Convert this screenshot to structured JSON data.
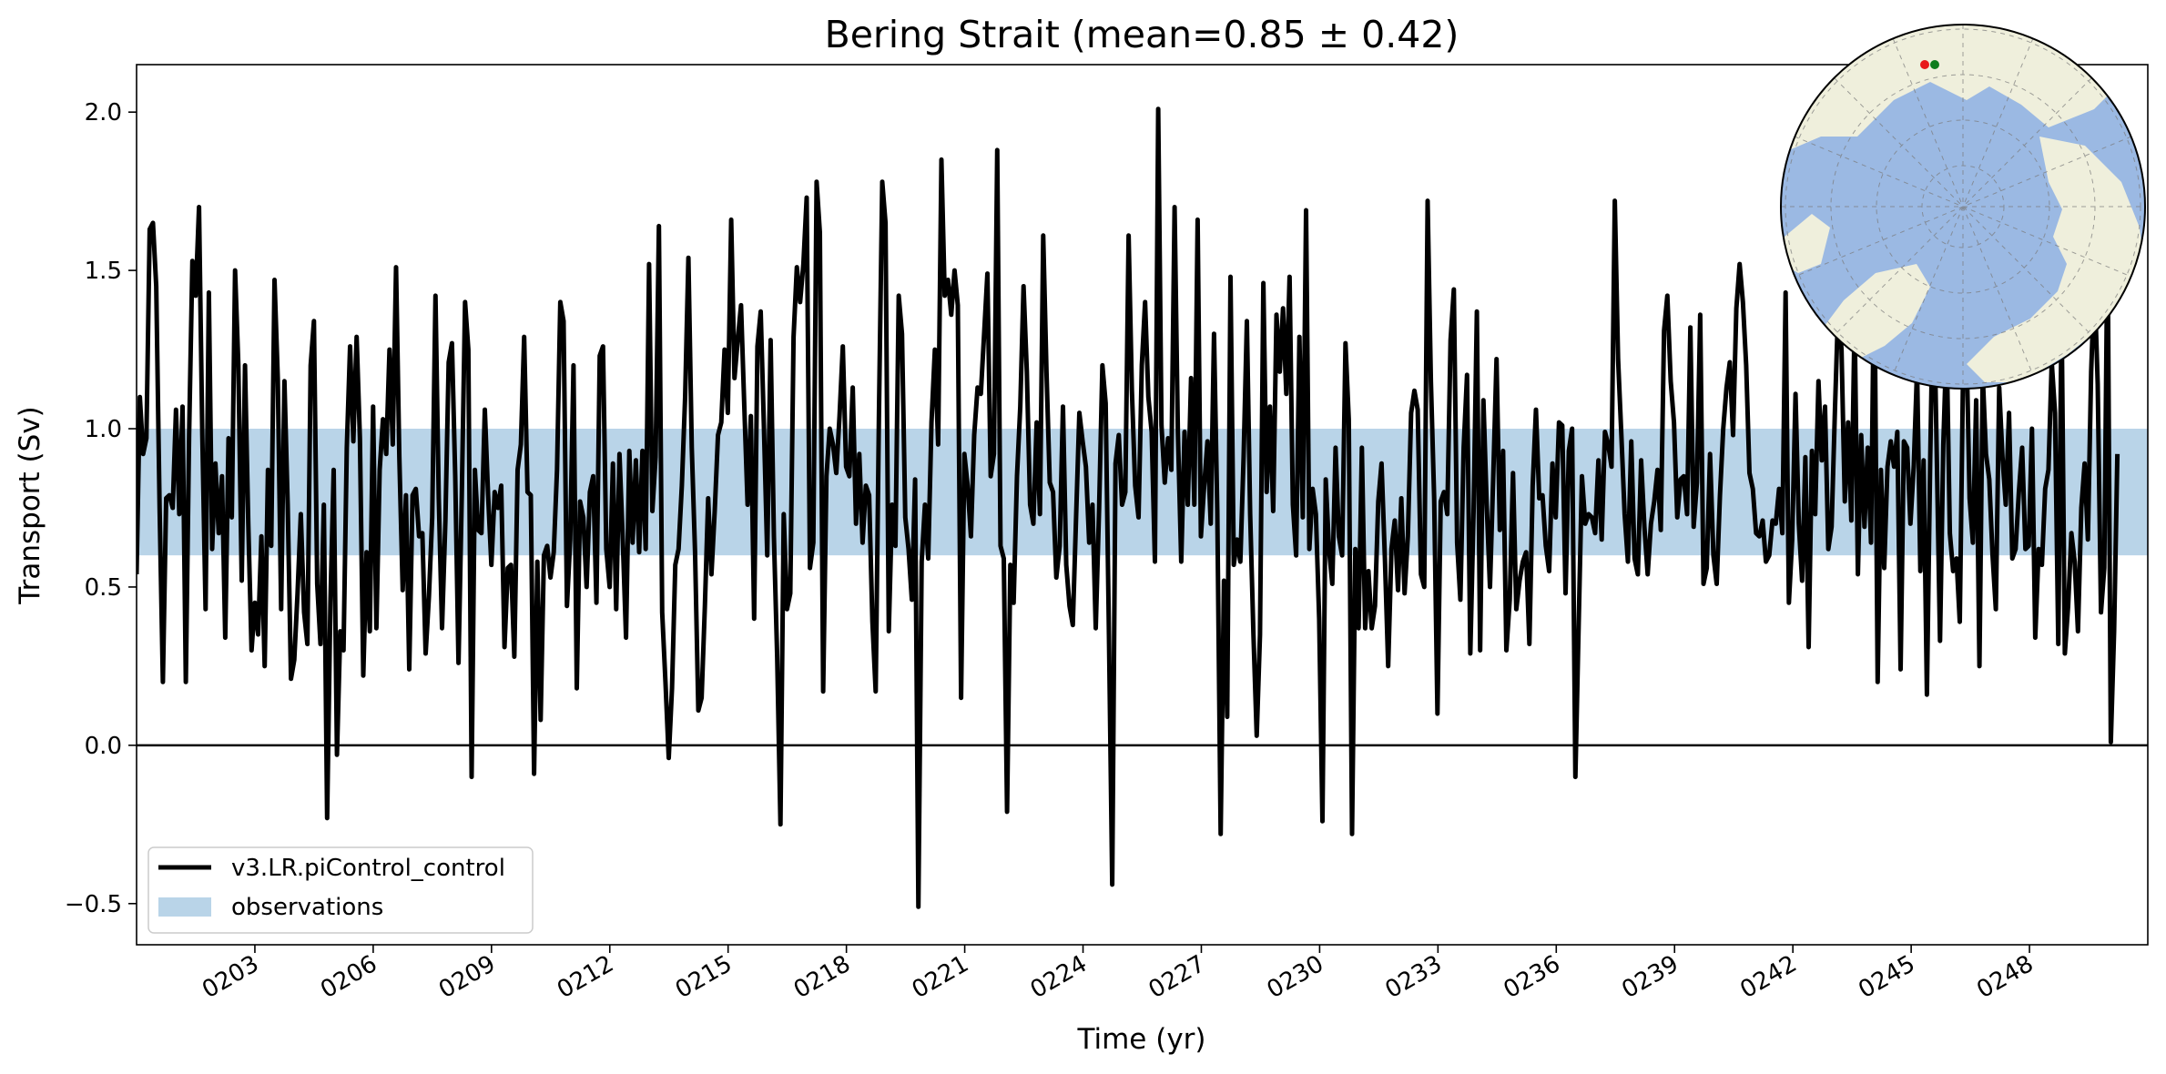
{
  "chart_data": {
    "type": "line",
    "title": "Bering Strait (mean=0.85 ± 0.42)",
    "xlabel": "Time (yr)",
    "ylabel": "Transport (Sv)",
    "xlim": [
      200,
      251
    ],
    "ylim": [
      -0.63,
      2.15
    ],
    "y_ticks": [
      -0.5,
      0.0,
      0.5,
      1.0,
      1.5,
      2.0
    ],
    "y_tick_labels": [
      "−0.5",
      "0.0",
      "0.5",
      "1.0",
      "1.5",
      "2.0"
    ],
    "x_ticks": [
      203,
      206,
      209,
      212,
      215,
      218,
      221,
      224,
      227,
      230,
      233,
      236,
      239,
      242,
      245,
      248
    ],
    "x_tick_labels": [
      "0203",
      "0206",
      "0209",
      "0212",
      "0215",
      "0218",
      "0221",
      "0224",
      "0227",
      "0230",
      "0233",
      "0236",
      "0239",
      "0242",
      "0245",
      "0248"
    ],
    "zero_line": 0.0,
    "observations_band": [
      0.6,
      1.0
    ],
    "legend_position": "lower-left",
    "series": [
      {
        "name": "v3.LR.piControl_control",
        "color": "#000000",
        "x_start": 200.0,
        "x_step": 0.0833,
        "values": [
          0.54,
          1.1,
          0.92,
          0.97,
          1.63,
          1.65,
          1.45,
          0.75,
          0.2,
          0.78,
          0.79,
          0.75,
          1.06,
          0.73,
          1.07,
          0.2,
          0.98,
          1.53,
          1.42,
          1.7,
          0.98,
          0.43,
          1.43,
          0.62,
          0.89,
          0.67,
          0.85,
          0.34,
          0.97,
          0.72,
          1.5,
          1.2,
          0.52,
          1.2,
          0.7,
          0.3,
          0.45,
          0.35,
          0.66,
          0.25,
          0.87,
          0.63,
          1.47,
          1.16,
          0.43,
          1.15,
          0.76,
          0.21,
          0.27,
          0.48,
          0.73,
          0.42,
          0.32,
          1.2,
          1.34,
          0.51,
          0.32,
          0.76,
          -0.23,
          0.45,
          0.87,
          -0.03,
          0.36,
          0.3,
          0.94,
          1.26,
          0.96,
          1.29,
          0.97,
          0.22,
          0.61,
          0.36,
          1.07,
          0.37,
          0.87,
          1.03,
          0.92,
          1.25,
          0.95,
          1.51,
          0.91,
          0.49,
          0.79,
          0.24,
          0.79,
          0.81,
          0.66,
          0.67,
          0.29,
          0.47,
          0.72,
          1.42,
          0.78,
          0.37,
          0.71,
          1.21,
          1.27,
          0.85,
          0.26,
          0.79,
          1.4,
          1.25,
          -0.1,
          0.87,
          0.68,
          0.67,
          1.06,
          0.79,
          0.57,
          0.8,
          0.75,
          0.82,
          0.31,
          0.56,
          0.57,
          0.28,
          0.87,
          0.95,
          1.29,
          0.8,
          0.79,
          -0.09,
          0.58,
          0.08,
          0.6,
          0.63,
          0.53,
          0.61,
          0.87,
          1.4,
          1.34,
          0.44,
          0.65,
          1.2,
          0.18,
          0.77,
          0.72,
          0.5,
          0.8,
          0.85,
          0.45,
          1.23,
          1.26,
          0.62,
          0.5,
          0.89,
          0.43,
          0.92,
          0.65,
          0.34,
          0.93,
          0.64,
          0.9,
          0.61,
          0.93,
          0.62,
          1.52,
          0.74,
          0.91,
          1.64,
          0.42,
          0.2,
          -0.04,
          0.18,
          0.57,
          0.62,
          0.82,
          1.1,
          1.54,
          0.94,
          0.61,
          0.11,
          0.15,
          0.44,
          0.78,
          0.54,
          0.74,
          0.98,
          1.02,
          1.25,
          1.05,
          1.66,
          1.16,
          1.28,
          1.39,
          1.07,
          0.76,
          1.04,
          0.4,
          1.26,
          1.37,
          1.0,
          0.6,
          1.28,
          0.66,
          0.28,
          -0.25,
          0.73,
          0.43,
          0.48,
          1.29,
          1.51,
          1.4,
          1.52,
          1.73,
          0.56,
          0.64,
          1.78,
          1.62,
          0.17,
          0.85,
          1.0,
          0.95,
          0.86,
          1.04,
          1.26,
          0.88,
          0.85,
          1.13,
          0.7,
          0.92,
          0.64,
          0.82,
          0.79,
          0.39,
          0.17,
          1.05,
          1.78,
          1.65,
          0.36,
          0.76,
          0.63,
          1.42,
          1.3,
          0.72,
          0.62,
          0.46,
          0.84,
          -0.51,
          0.58,
          0.76,
          0.59,
          1.02,
          1.25,
          0.95,
          1.85,
          1.42,
          1.47,
          1.36,
          1.5,
          1.39,
          0.15,
          0.92,
          0.82,
          0.66,
          0.98,
          1.13,
          1.11,
          1.3,
          1.49,
          0.85,
          0.92,
          1.88,
          0.63,
          0.59,
          -0.21,
          0.57,
          0.45,
          0.85,
          1.07,
          1.45,
          1.18,
          0.76,
          0.7,
          1.02,
          0.73,
          1.61,
          1.18,
          0.83,
          0.8,
          0.53,
          0.63,
          1.07,
          0.57,
          0.44,
          0.38,
          0.72,
          1.05,
          0.96,
          0.88,
          0.64,
          0.76,
          0.37,
          0.75,
          1.2,
          1.08,
          0.35,
          -0.44,
          0.89,
          0.98,
          0.76,
          0.8,
          1.61,
          1.12,
          0.82,
          0.72,
          1.2,
          1.4,
          1.1,
          0.99,
          0.58,
          2.01,
          1.01,
          0.83,
          0.97,
          0.87,
          1.7,
          0.99,
          0.58,
          0.99,
          0.76,
          1.16,
          0.76,
          1.66,
          0.66,
          0.82,
          0.96,
          0.7,
          1.3,
          0.74,
          -0.28,
          0.52,
          0.09,
          1.48,
          0.57,
          0.65,
          0.58,
          0.91,
          1.34,
          0.73,
          0.35,
          0.03,
          0.35,
          1.46,
          0.8,
          1.07,
          0.74,
          1.36,
          1.18,
          1.38,
          1.11,
          1.48,
          0.76,
          0.6,
          1.29,
          0.72,
          1.69,
          0.62,
          0.81,
          0.73,
          0.4,
          -0.24,
          0.84,
          0.62,
          0.51,
          0.94,
          0.66,
          0.6,
          1.27,
          1.03,
          -0.28,
          0.62,
          0.37,
          0.94,
          0.37,
          0.55,
          0.37,
          0.44,
          0.77,
          0.89,
          0.59,
          0.25,
          0.62,
          0.71,
          0.49,
          0.78,
          0.48,
          0.66,
          1.05,
          1.12,
          1.06,
          0.54,
          0.5,
          1.72,
          1.15,
          0.78,
          0.1,
          0.77,
          0.8,
          0.73,
          1.28,
          1.44,
          0.64,
          0.46,
          0.94,
          1.17,
          0.29,
          0.74,
          1.37,
          0.3,
          1.09,
          0.76,
          0.5,
          0.85,
          1.22,
          0.68,
          0.93,
          0.3,
          0.46,
          0.86,
          0.43,
          0.52,
          0.58,
          0.61,
          0.32,
          0.82,
          1.06,
          0.78,
          0.79,
          0.63,
          0.55,
          0.89,
          0.72,
          1.02,
          1.01,
          0.48,
          0.93,
          1.0,
          -0.1,
          0.38,
          0.85,
          0.7,
          0.73,
          0.72,
          0.67,
          0.9,
          0.65,
          0.99,
          0.95,
          0.88,
          1.72,
          1.22,
          0.98,
          0.73,
          0.58,
          0.96,
          0.59,
          0.54,
          0.9,
          0.69,
          0.54,
          0.7,
          0.77,
          0.87,
          0.68,
          1.31,
          1.42,
          1.15,
          1.02,
          0.72,
          0.84,
          0.85,
          0.73,
          1.32,
          0.69,
          0.83,
          1.36,
          0.51,
          0.56,
          0.92,
          0.6,
          0.51,
          0.79,
          1.0,
          1.13,
          1.21,
          0.98,
          1.38,
          1.52,
          1.4,
          1.2,
          0.86,
          0.81,
          0.67,
          0.66,
          0.71,
          0.58,
          0.6,
          0.71,
          0.7,
          0.81,
          0.67,
          1.43,
          0.45,
          0.65,
          1.11,
          0.7,
          0.52,
          0.91,
          0.31,
          0.93,
          0.73,
          1.15,
          0.9,
          1.07,
          0.62,
          0.69,
          1.06,
          1.39,
          1.25,
          0.77,
          1.02,
          0.71,
          1.35,
          0.54,
          0.98,
          0.69,
          0.94,
          0.64,
          1.55,
          0.2,
          0.87,
          0.56,
          0.88,
          0.96,
          0.88,
          0.99,
          0.24,
          0.96,
          0.94,
          0.7,
          0.88,
          1.19,
          0.55,
          0.9,
          0.16,
          0.9,
          1.49,
          0.92,
          0.33,
          0.95,
          1.28,
          0.67,
          0.55,
          0.59,
          0.39,
          1.18,
          1.29,
          0.78,
          0.64,
          1.09,
          0.25,
          1.17,
          0.92,
          0.84,
          0.6,
          0.43,
          1.13,
          0.91,
          0.76,
          1.05,
          0.59,
          0.62,
          0.8,
          0.94,
          0.62,
          0.63,
          1.0,
          0.34,
          0.62,
          0.57,
          0.81,
          0.87,
          1.21,
          1.05,
          0.32,
          1.37,
          0.29,
          0.44,
          0.67,
          0.58,
          0.36,
          0.75,
          0.89,
          0.65,
          1.18,
          1.47,
          1.14,
          0.42,
          0.56,
          1.62,
          0.01,
          0.36,
          0.92
        ]
      }
    ],
    "legend": [
      {
        "label": "v3.LR.piControl_control",
        "kind": "line",
        "color": "#000000"
      },
      {
        "label": "observations",
        "kind": "patch",
        "color": "#b9d4e8"
      }
    ],
    "inset_map": {
      "projection": "north-polar-stereographic",
      "ocean_color": "#9bb9e3",
      "land_color": "#efefdc",
      "markers": [
        {
          "name": "section-start",
          "color": "#e8171a"
        },
        {
          "name": "section-end",
          "color": "#0d7d1c"
        }
      ]
    }
  }
}
